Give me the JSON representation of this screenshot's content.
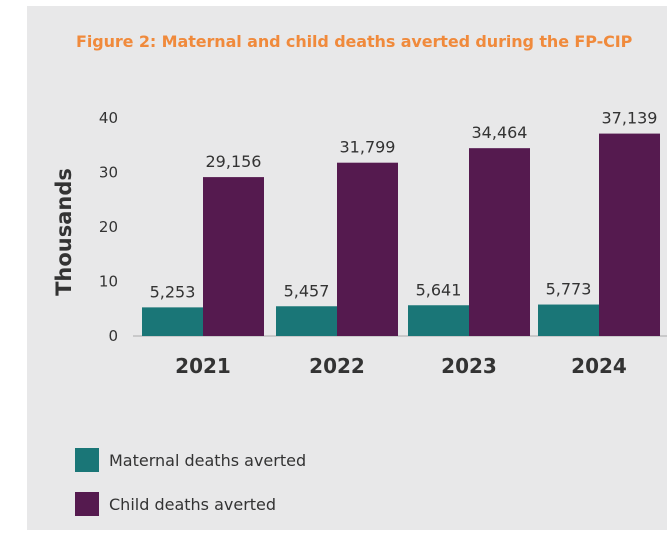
{
  "figure": {
    "title": "Figure 2: Maternal and child deaths averted during the FP-CIP"
  },
  "colors": {
    "panel_background": "#e8e8e9",
    "title": "#f08a3c",
    "maternal": "#1a7677",
    "child": "#551a4f",
    "text": "#333333"
  },
  "chart_data": {
    "type": "bar",
    "categories": [
      "2021",
      "2022",
      "2023",
      "2024"
    ],
    "series": [
      {
        "name": "Maternal deaths averted",
        "values": [
          5253,
          5457,
          5641,
          5773
        ],
        "labels": [
          "5,253",
          "5,457",
          "5,641",
          "5,773"
        ],
        "color": "#1a7677"
      },
      {
        "name": "Child deaths averted",
        "values": [
          29156,
          31799,
          34464,
          37139
        ],
        "labels": [
          "29,156",
          "31,799",
          "34,464",
          "37,139"
        ],
        "color": "#551a4f"
      }
    ],
    "ylabel": "Thousands",
    "xlabel": "",
    "yticks": [
      "0",
      "10",
      "20",
      "30",
      "40"
    ],
    "ylim": [
      0,
      40000
    ],
    "grid": false,
    "legend_position": "bottom-left"
  },
  "legend": [
    {
      "label": "Maternal deaths averted",
      "color": "#1a7677"
    },
    {
      "label": "Child deaths averted",
      "color": "#551a4f"
    }
  ]
}
